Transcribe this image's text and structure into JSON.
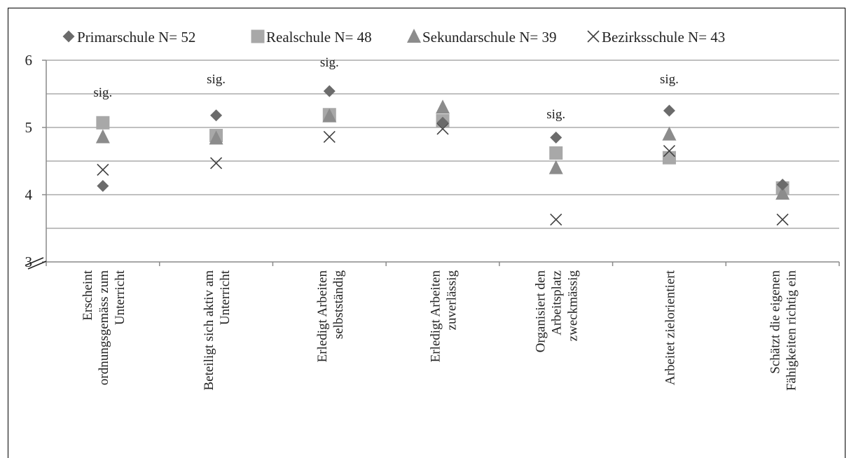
{
  "chart_data": {
    "type": "scatter",
    "categories": [
      [
        "Erscheint",
        "ordnungsgemäss zum",
        "Unterricht"
      ],
      [
        "Beteiligt sich aktiv am",
        "Unterricht"
      ],
      [
        "Erledigt Arbeiten",
        "selbstständig"
      ],
      [
        "Erledigt Arbeiten",
        "zuverlässig"
      ],
      [
        "Organisiert den",
        "Arbeitsplatz",
        "zweckmässig"
      ],
      [
        "Arbeitet zielorientiert"
      ],
      [
        "Schätzt die eigenen",
        "Fähigkeiten richtig ein"
      ]
    ],
    "series": [
      {
        "name": "Primarschule N= 52",
        "marker": "diamond",
        "color": "#6b6b6b",
        "values": [
          4.13,
          5.18,
          5.54,
          5.07,
          4.85,
          5.25,
          4.15
        ]
      },
      {
        "name": "Realschule N= 48",
        "marker": "square",
        "color": "#a8a8a8",
        "values": [
          5.07,
          4.88,
          5.19,
          5.1,
          4.62,
          4.55,
          4.1
        ]
      },
      {
        "name": "Sekundarschule N= 39",
        "marker": "triangle",
        "color": "#8c8c8c",
        "values": [
          4.86,
          4.84,
          5.17,
          5.3,
          4.4,
          4.9,
          4.02
        ]
      },
      {
        "name": "Bezirksschule N= 43",
        "marker": "x",
        "color": "#404040",
        "values": [
          4.37,
          4.47,
          4.86,
          4.98,
          3.63,
          4.65,
          3.63
        ]
      }
    ],
    "annotations": [
      {
        "text": "sig.",
        "category": 0,
        "y": 5.52
      },
      {
        "text": "sig.",
        "category": 1,
        "y": 5.72
      },
      {
        "text": "sig.",
        "category": 2,
        "y": 5.97
      },
      {
        "text": "sig.",
        "category": 4,
        "y": 5.2
      },
      {
        "text": "sig.",
        "category": 5,
        "y": 5.72
      }
    ],
    "ylim": [
      3,
      6
    ],
    "yticks": [
      3,
      4,
      5,
      6
    ],
    "gridlines": [
      3.5,
      4,
      4.5,
      5,
      5.5,
      6
    ],
    "axis_break": true,
    "legend_position": "top",
    "xlabel": "",
    "ylabel": "",
    "title": ""
  }
}
